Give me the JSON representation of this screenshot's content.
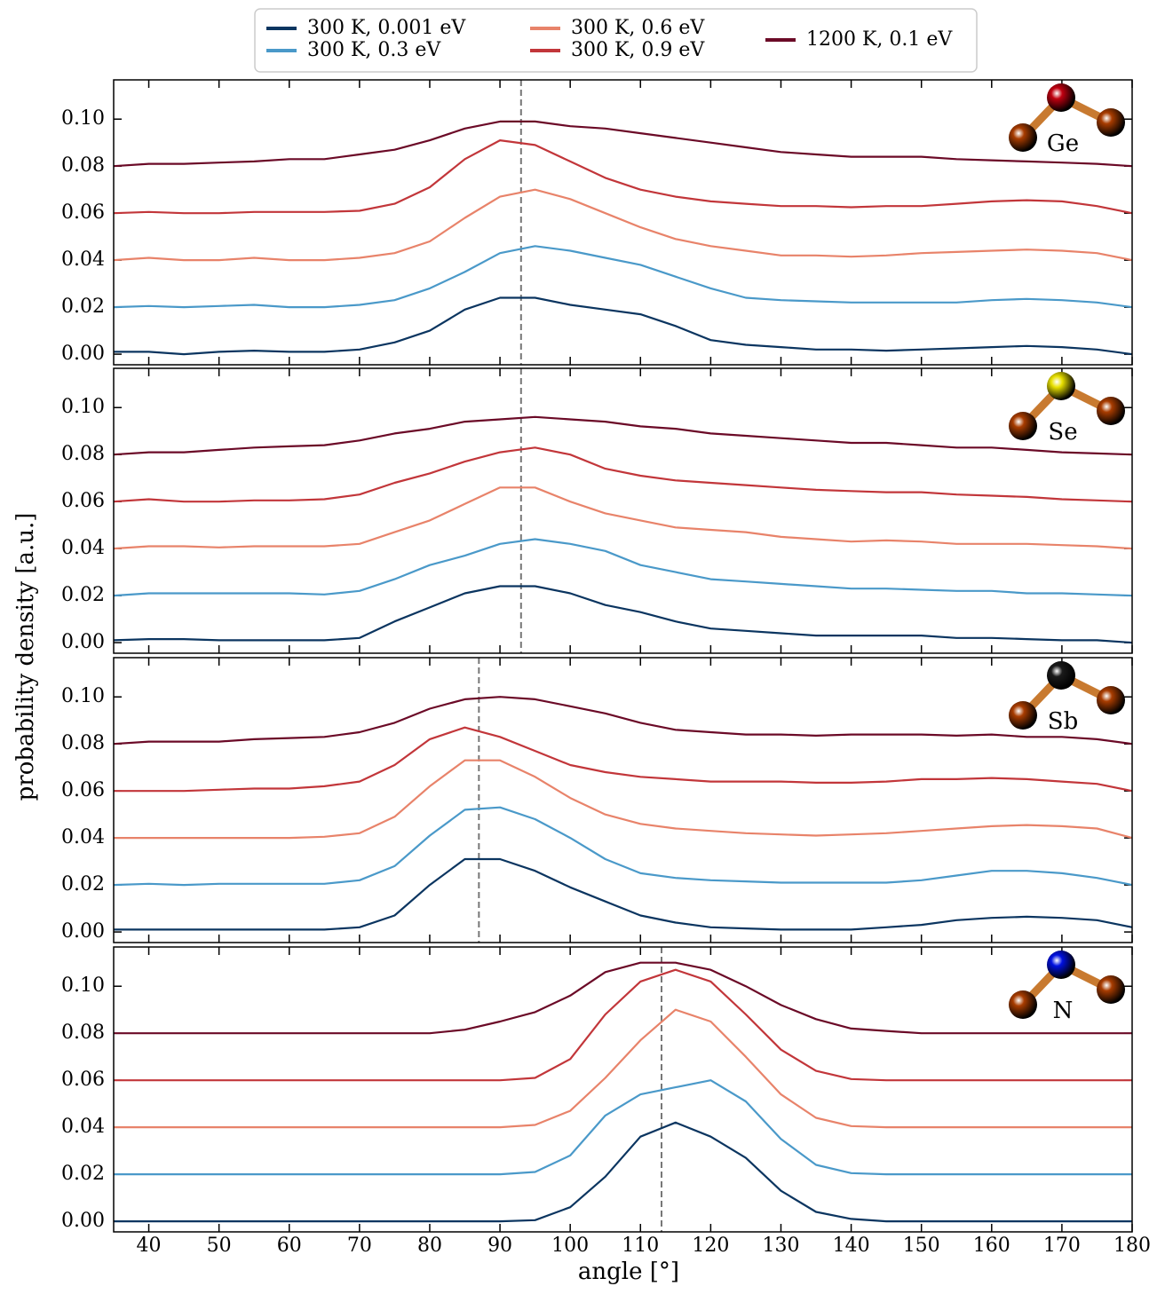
{
  "chart_data": [
    {
      "type": "line",
      "label": "Ge",
      "atom_color": "#c00010",
      "vline": 93,
      "ylabel": "probability density [a.u.]",
      "xlim": [
        35,
        180
      ],
      "ylim": [
        -0.0045,
        0.1167
      ],
      "yticks": [
        {
          "value": 0,
          "label": "0.00"
        },
        {
          "value": 0.02,
          "label": "0.02"
        },
        {
          "value": 0.04,
          "label": "0.04"
        },
        {
          "value": 0.06,
          "label": "0.06"
        },
        {
          "value": 0.08,
          "label": "0.08"
        },
        {
          "value": 0.1,
          "label": "0.10"
        }
      ],
      "x": [
        35,
        40,
        45,
        50,
        55,
        60,
        65,
        70,
        75,
        80,
        85,
        90,
        95,
        100,
        105,
        110,
        115,
        120,
        125,
        130,
        135,
        140,
        145,
        150,
        155,
        160,
        165,
        170,
        175,
        180
      ],
      "series": [
        {
          "name": "300 K, 0.001 eV",
          "color": "#0b3560",
          "values": [
            0.001,
            0.001,
            0.0,
            0.001,
            0.0015,
            0.001,
            0.001,
            0.002,
            0.005,
            0.01,
            0.019,
            0.024,
            0.024,
            0.021,
            0.019,
            0.017,
            0.012,
            0.006,
            0.004,
            0.003,
            0.002,
            0.002,
            0.0015,
            0.002,
            0.0025,
            0.003,
            0.0035,
            0.003,
            0.002,
            0.0
          ]
        },
        {
          "name": "300 K, 0.3 eV",
          "color": "#4a99c9",
          "values": [
            0.02,
            0.0205,
            0.02,
            0.0205,
            0.021,
            0.02,
            0.02,
            0.021,
            0.023,
            0.028,
            0.035,
            0.043,
            0.046,
            0.044,
            0.041,
            0.038,
            0.033,
            0.028,
            0.024,
            0.023,
            0.0225,
            0.022,
            0.022,
            0.022,
            0.022,
            0.023,
            0.0235,
            0.023,
            0.022,
            0.02
          ]
        },
        {
          "name": "300 K, 0.6 eV",
          "color": "#e8836a",
          "values": [
            0.04,
            0.041,
            0.04,
            0.04,
            0.041,
            0.04,
            0.04,
            0.041,
            0.043,
            0.048,
            0.058,
            0.067,
            0.07,
            0.066,
            0.06,
            0.054,
            0.049,
            0.046,
            0.044,
            0.042,
            0.042,
            0.0415,
            0.042,
            0.043,
            0.0435,
            0.044,
            0.0445,
            0.044,
            0.043,
            0.04
          ]
        },
        {
          "name": "300 K, 0.9 eV",
          "color": "#c2363a",
          "values": [
            0.06,
            0.0605,
            0.06,
            0.06,
            0.0605,
            0.0605,
            0.0605,
            0.061,
            0.064,
            0.071,
            0.083,
            0.091,
            0.089,
            0.082,
            0.075,
            0.07,
            0.067,
            0.065,
            0.064,
            0.063,
            0.063,
            0.0625,
            0.063,
            0.063,
            0.064,
            0.065,
            0.0655,
            0.065,
            0.063,
            0.06
          ]
        },
        {
          "name": "1200 K, 0.1 eV",
          "color": "#6b0a27",
          "values": [
            0.08,
            0.081,
            0.081,
            0.0815,
            0.082,
            0.083,
            0.083,
            0.085,
            0.087,
            0.091,
            0.096,
            0.099,
            0.099,
            0.097,
            0.096,
            0.094,
            0.092,
            0.09,
            0.088,
            0.086,
            0.085,
            0.084,
            0.084,
            0.084,
            0.083,
            0.0825,
            0.082,
            0.0815,
            0.081,
            0.08
          ]
        }
      ]
    },
    {
      "type": "line",
      "label": "Se",
      "atom_color": "#e8e000",
      "vline": 93,
      "xlim": [
        35,
        180
      ],
      "ylim": [
        -0.0045,
        0.1167
      ],
      "yticks": [
        {
          "value": 0,
          "label": "0.00"
        },
        {
          "value": 0.02,
          "label": "0.02"
        },
        {
          "value": 0.04,
          "label": "0.04"
        },
        {
          "value": 0.06,
          "label": "0.06"
        },
        {
          "value": 0.08,
          "label": "0.08"
        },
        {
          "value": 0.1,
          "label": "0.10"
        }
      ],
      "x": [
        35,
        40,
        45,
        50,
        55,
        60,
        65,
        70,
        75,
        80,
        85,
        90,
        95,
        100,
        105,
        110,
        115,
        120,
        125,
        130,
        135,
        140,
        145,
        150,
        155,
        160,
        165,
        170,
        175,
        180
      ],
      "series": [
        {
          "color": "#0b3560",
          "values": [
            0.001,
            0.0015,
            0.0015,
            0.001,
            0.001,
            0.001,
            0.001,
            0.002,
            0.009,
            0.015,
            0.021,
            0.024,
            0.024,
            0.021,
            0.016,
            0.013,
            0.009,
            0.006,
            0.005,
            0.004,
            0.003,
            0.003,
            0.003,
            0.003,
            0.002,
            0.002,
            0.0015,
            0.001,
            0.001,
            0.0
          ]
        },
        {
          "color": "#4a99c9",
          "values": [
            0.02,
            0.021,
            0.021,
            0.021,
            0.021,
            0.021,
            0.0205,
            0.022,
            0.027,
            0.033,
            0.037,
            0.042,
            0.044,
            0.042,
            0.039,
            0.033,
            0.03,
            0.027,
            0.026,
            0.025,
            0.024,
            0.023,
            0.023,
            0.0225,
            0.022,
            0.022,
            0.021,
            0.021,
            0.0205,
            0.02
          ]
        },
        {
          "color": "#e8836a",
          "values": [
            0.04,
            0.041,
            0.041,
            0.0405,
            0.041,
            0.041,
            0.041,
            0.042,
            0.047,
            0.052,
            0.059,
            0.066,
            0.066,
            0.06,
            0.055,
            0.052,
            0.049,
            0.048,
            0.047,
            0.045,
            0.044,
            0.043,
            0.0435,
            0.043,
            0.042,
            0.042,
            0.042,
            0.0415,
            0.041,
            0.04
          ]
        },
        {
          "color": "#c2363a",
          "values": [
            0.06,
            0.061,
            0.06,
            0.06,
            0.0605,
            0.0605,
            0.061,
            0.063,
            0.068,
            0.072,
            0.077,
            0.081,
            0.083,
            0.08,
            0.074,
            0.071,
            0.069,
            0.068,
            0.067,
            0.066,
            0.065,
            0.0645,
            0.064,
            0.064,
            0.063,
            0.0625,
            0.062,
            0.061,
            0.0605,
            0.06
          ]
        },
        {
          "color": "#6b0a27",
          "values": [
            0.08,
            0.081,
            0.081,
            0.082,
            0.083,
            0.0835,
            0.084,
            0.086,
            0.089,
            0.091,
            0.094,
            0.095,
            0.096,
            0.095,
            0.094,
            0.092,
            0.091,
            0.089,
            0.088,
            0.087,
            0.086,
            0.085,
            0.085,
            0.084,
            0.083,
            0.083,
            0.082,
            0.081,
            0.0805,
            0.08
          ]
        }
      ]
    },
    {
      "type": "line",
      "label": "Sb",
      "atom_color": "#1a1a1a",
      "vline": 87,
      "xlim": [
        35,
        180
      ],
      "ylim": [
        -0.0045,
        0.1167
      ],
      "yticks": [
        {
          "value": 0,
          "label": "0.00"
        },
        {
          "value": 0.02,
          "label": "0.02"
        },
        {
          "value": 0.04,
          "label": "0.04"
        },
        {
          "value": 0.06,
          "label": "0.06"
        },
        {
          "value": 0.08,
          "label": "0.08"
        },
        {
          "value": 0.1,
          "label": "0.10"
        }
      ],
      "x": [
        35,
        40,
        45,
        50,
        55,
        60,
        65,
        70,
        75,
        80,
        85,
        90,
        95,
        100,
        105,
        110,
        115,
        120,
        125,
        130,
        135,
        140,
        145,
        150,
        155,
        160,
        165,
        170,
        175,
        180
      ],
      "series": [
        {
          "color": "#0b3560",
          "values": [
            0.001,
            0.001,
            0.001,
            0.001,
            0.001,
            0.001,
            0.001,
            0.002,
            0.007,
            0.02,
            0.031,
            0.031,
            0.026,
            0.019,
            0.013,
            0.007,
            0.004,
            0.002,
            0.0015,
            0.001,
            0.001,
            0.001,
            0.002,
            0.003,
            0.005,
            0.006,
            0.0065,
            0.006,
            0.005,
            0.002
          ]
        },
        {
          "color": "#4a99c9",
          "values": [
            0.02,
            0.0205,
            0.02,
            0.0205,
            0.0205,
            0.0205,
            0.0205,
            0.022,
            0.028,
            0.041,
            0.052,
            0.053,
            0.048,
            0.04,
            0.031,
            0.025,
            0.023,
            0.022,
            0.0215,
            0.021,
            0.021,
            0.021,
            0.021,
            0.022,
            0.024,
            0.026,
            0.026,
            0.025,
            0.023,
            0.02
          ]
        },
        {
          "color": "#e8836a",
          "values": [
            0.04,
            0.04,
            0.04,
            0.04,
            0.04,
            0.04,
            0.0405,
            0.042,
            0.049,
            0.062,
            0.073,
            0.073,
            0.066,
            0.057,
            0.05,
            0.046,
            0.044,
            0.043,
            0.042,
            0.0415,
            0.041,
            0.0415,
            0.042,
            0.043,
            0.044,
            0.045,
            0.0455,
            0.045,
            0.044,
            0.04
          ]
        },
        {
          "color": "#c2363a",
          "values": [
            0.06,
            0.06,
            0.06,
            0.0605,
            0.061,
            0.061,
            0.062,
            0.064,
            0.071,
            0.082,
            0.087,
            0.083,
            0.077,
            0.071,
            0.068,
            0.066,
            0.065,
            0.064,
            0.064,
            0.064,
            0.0635,
            0.0635,
            0.064,
            0.065,
            0.065,
            0.0655,
            0.065,
            0.064,
            0.063,
            0.06
          ]
        },
        {
          "color": "#6b0a27",
          "values": [
            0.08,
            0.081,
            0.081,
            0.081,
            0.082,
            0.0825,
            0.083,
            0.085,
            0.089,
            0.095,
            0.099,
            0.1,
            0.099,
            0.096,
            0.093,
            0.089,
            0.086,
            0.085,
            0.084,
            0.084,
            0.0835,
            0.084,
            0.084,
            0.084,
            0.0835,
            0.084,
            0.083,
            0.083,
            0.082,
            0.08
          ]
        }
      ]
    },
    {
      "type": "line",
      "label": "N",
      "atom_color": "#0010e0",
      "vline": 113,
      "xlabel": "angle [°]",
      "xlim": [
        35,
        180
      ],
      "ylim": [
        -0.0045,
        0.1167
      ],
      "xticks": [
        40,
        50,
        60,
        70,
        80,
        90,
        100,
        110,
        120,
        130,
        140,
        150,
        160,
        170,
        180
      ],
      "yticks": [
        {
          "value": 0,
          "label": "0.00"
        },
        {
          "value": 0.02,
          "label": "0.02"
        },
        {
          "value": 0.04,
          "label": "0.04"
        },
        {
          "value": 0.06,
          "label": "0.06"
        },
        {
          "value": 0.08,
          "label": "0.08"
        },
        {
          "value": 0.1,
          "label": "0.10"
        }
      ],
      "x": [
        35,
        40,
        45,
        50,
        55,
        60,
        65,
        70,
        75,
        80,
        85,
        90,
        95,
        100,
        105,
        110,
        115,
        120,
        125,
        130,
        135,
        140,
        145,
        150,
        155,
        160,
        165,
        170,
        175,
        180
      ],
      "series": [
        {
          "color": "#0b3560",
          "values": [
            0,
            0,
            0,
            0,
            0,
            0,
            0,
            0,
            0,
            0,
            0,
            0,
            0.0005,
            0.006,
            0.019,
            0.036,
            0.042,
            0.036,
            0.027,
            0.013,
            0.004,
            0.001,
            0,
            0,
            0,
            0,
            0,
            0,
            0,
            0
          ]
        },
        {
          "color": "#4a99c9",
          "values": [
            0.02,
            0.02,
            0.02,
            0.02,
            0.02,
            0.02,
            0.02,
            0.02,
            0.02,
            0.02,
            0.02,
            0.02,
            0.021,
            0.028,
            0.045,
            0.054,
            0.057,
            0.06,
            0.051,
            0.035,
            0.024,
            0.0205,
            0.02,
            0.02,
            0.02,
            0.02,
            0.02,
            0.02,
            0.02,
            0.02
          ]
        },
        {
          "color": "#e8836a",
          "values": [
            0.04,
            0.04,
            0.04,
            0.04,
            0.04,
            0.04,
            0.04,
            0.04,
            0.04,
            0.04,
            0.04,
            0.04,
            0.041,
            0.047,
            0.061,
            0.077,
            0.09,
            0.085,
            0.07,
            0.054,
            0.044,
            0.0405,
            0.04,
            0.04,
            0.04,
            0.04,
            0.04,
            0.04,
            0.04,
            0.04
          ]
        },
        {
          "color": "#c2363a",
          "values": [
            0.06,
            0.06,
            0.06,
            0.06,
            0.06,
            0.06,
            0.06,
            0.06,
            0.06,
            0.06,
            0.06,
            0.06,
            0.061,
            0.069,
            0.088,
            0.102,
            0.107,
            0.102,
            0.088,
            0.073,
            0.064,
            0.0605,
            0.06,
            0.06,
            0.06,
            0.06,
            0.06,
            0.06,
            0.06,
            0.06
          ]
        },
        {
          "color": "#6b0a27",
          "values": [
            0.08,
            0.08,
            0.08,
            0.08,
            0.08,
            0.08,
            0.08,
            0.08,
            0.08,
            0.08,
            0.0815,
            0.085,
            0.089,
            0.096,
            0.106,
            0.11,
            0.11,
            0.107,
            0.1,
            0.092,
            0.086,
            0.082,
            0.081,
            0.08,
            0.08,
            0.08,
            0.08,
            0.08,
            0.08,
            0.08
          ]
        }
      ]
    }
  ]
}
